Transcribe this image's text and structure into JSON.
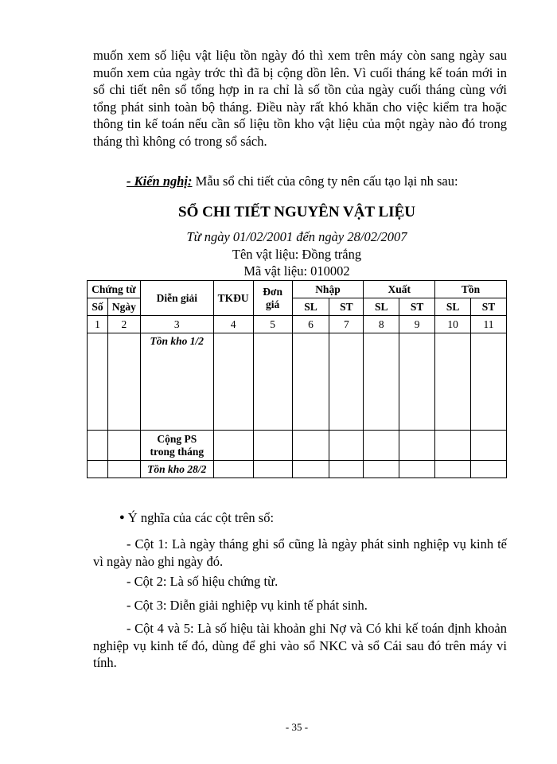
{
  "intro_paragraph": "muốn xem số liệu vật liệu tồn ngày đó thì xem trên máy còn sang ngày sau muốn xem của ngày trớc   thì đã bị cộng dồn lên. Vì cuối tháng kế toán mới in sổ chi tiết nên sổ tổng hợp in ra chỉ là số tồn của ngày cuối tháng cùng với tổng phát sinh toàn bộ tháng. Điều này rất khó khăn cho việc kiểm tra hoặc thông tin kế toán nếu cần số liệu tồn kho vật liệu của một ngày nào đó trong tháng thì không có trong sổ sách.",
  "recommendation": {
    "label": "- Kiến nghị:",
    "text": " Mẫu sổ chi tiết của công ty nên cấu tạo lại nh   sau:"
  },
  "ledger": {
    "title": "SỔ CHI TIẾT NGUYÊN VẬT LIỆU",
    "period": "Từ ngày 01/02/2001 đến ngày 28/02/2007",
    "material_name": "Tên vật liệu: Đồng   trắng",
    "material_code": "Mã vật liệu: 010002",
    "headers": {
      "chung_tu": "Chứng từ",
      "so": "Số",
      "ngay": "Ngày",
      "dien_giai": "Diễn giải",
      "tkdu": "TKĐU",
      "don_gia_1": "Đơn",
      "don_gia_2": "giá",
      "nhap": "Nhập",
      "xuat": "Xuất",
      "ton": "Tồn",
      "sl": "SL",
      "st": "ST"
    },
    "column_numbers": [
      "1",
      "2",
      "3",
      "4",
      "5",
      "6",
      "7",
      "8",
      "9",
      "10",
      "11"
    ],
    "rows": {
      "opening": "Tồn kho 1/2",
      "total_1": "Cộng PS",
      "total_2": "trong tháng",
      "closing": "Tồn kho 28/2"
    }
  },
  "meaning_heading": "Ý nghĩa của các cột trên sổ:",
  "meanings": [
    "- Cột 1: Là ngày tháng ghi sổ cũng là ngày phát sinh nghiệp vụ kinh tế vì ngày nào ghi ngày đó.",
    "- Cột 2: Là số hiệu chứng từ.",
    "- Cột 3: Diễn giải nghiệp vụ kinh tế phát sinh.",
    "- Cột 4 và 5: Là số hiệu tài khoản ghi Nợ và Có khi kế toán định khoản nghiệp vụ kinh tế đó, dùng để ghi vào sổ NKC và sổ Cái sau đó trên máy vi tính."
  ],
  "page_number": "- 35 -"
}
